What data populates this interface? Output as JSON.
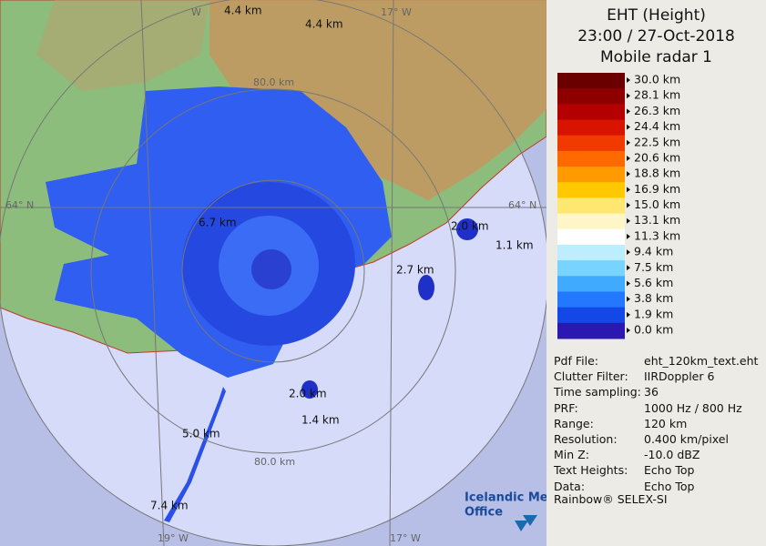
{
  "header": {
    "title": "EHT (Height)",
    "time": "23:00 / 27-Oct-2018",
    "radar": "Mobile radar 1"
  },
  "legend": {
    "labels": [
      "30.0 km",
      "28.1 km",
      "26.3 km",
      "24.4 km",
      "22.5 km",
      "20.6 km",
      "18.8 km",
      "16.9 km",
      "15.0 km",
      "13.1 km",
      "11.3 km",
      "9.4 km",
      "7.5 km",
      "5.6 km",
      "3.8 km",
      "1.9 km",
      "0.0 km"
    ],
    "colors": [
      "#6a0000",
      "#8e0000",
      "#b40000",
      "#d81400",
      "#f03a00",
      "#ff6a00",
      "#ff9a00",
      "#ffc800",
      "#ffe870",
      "#fff6c8",
      "#ffffff",
      "#bdeeff",
      "#78d4ff",
      "#40aaff",
      "#2478ff",
      "#1448e6",
      "#2a18b0"
    ]
  },
  "info": {
    "rows": [
      [
        "Pdf File:",
        "eht_120km_text.eht"
      ],
      [
        "Clutter Filter:",
        "IIRDoppler 6"
      ],
      [
        "Time sampling:",
        "36"
      ],
      [
        "PRF:",
        "1000 Hz / 800 Hz"
      ],
      [
        "Range:",
        "120 km"
      ],
      [
        "Resolution:",
        "0.400 km/pixel"
      ],
      [
        "Min Z:",
        "-10.0 dBZ"
      ],
      [
        "Text Heights:",
        "Echo Top"
      ],
      [
        "Data:",
        "Echo Top"
      ]
    ]
  },
  "footer": "Rainbow® SELEX-SI",
  "map": {
    "labels": [
      "W",
      "4.4 km",
      "4.4 km",
      "17° W",
      "80.0 km",
      "64° N",
      "64° N",
      "6.7 km",
      "2.0 km",
      "1.1 km",
      "2.7 km",
      "2.0 km",
      "1.4 km",
      "5.0 km",
      "80.0 km",
      "7.4 km",
      "19° W",
      "17° W"
    ],
    "logo": [
      "Icelandic Met",
      "Office"
    ]
  }
}
